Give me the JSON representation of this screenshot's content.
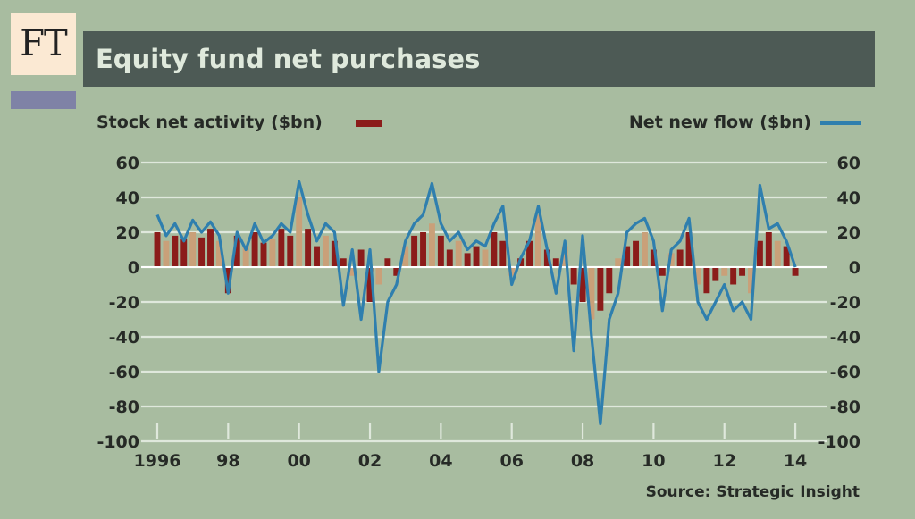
{
  "logo": {
    "text": "FT"
  },
  "header": {
    "title": "Equity fund net purchases"
  },
  "legend": {
    "left_label": "Stock net activity ($bn)",
    "right_label": "Net new flow ($bn)"
  },
  "source": "Source: Strategic Insight",
  "colors": {
    "background": "#a8bca0",
    "title_bar": "#4d5a55",
    "bars": "#8b1c1a",
    "bars_light": "#c9a079",
    "line": "#2f7fae",
    "gridline": "#dfe8dc"
  },
  "chart_data": {
    "type": "bar",
    "title": "Equity fund net purchases",
    "y_axis_left_label": "Stock net activity ($bn)",
    "y_axis_right_label": "Net new flow ($bn)",
    "ylim": [
      -100,
      60
    ],
    "yticks": [
      60,
      40,
      20,
      0,
      -20,
      -40,
      -60,
      -80,
      -100
    ],
    "xlim": [
      1996,
      2014.2
    ],
    "xticks": [
      {
        "value": 1996,
        "label": "1996"
      },
      {
        "value": 1998,
        "label": "98"
      },
      {
        "value": 2000,
        "label": "00"
      },
      {
        "value": 2002,
        "label": "02"
      },
      {
        "value": 2004,
        "label": "04"
      },
      {
        "value": 2006,
        "label": "06"
      },
      {
        "value": 2008,
        "label": "08"
      },
      {
        "value": 2010,
        "label": "10"
      },
      {
        "value": 2012,
        "label": "12"
      },
      {
        "value": 2014,
        "label": "14"
      }
    ],
    "grid": true,
    "series": [
      {
        "name": "Stock net activity ($bn)",
        "kind": "bar",
        "x": [
          1996.0,
          1996.25,
          1996.5,
          1996.75,
          1997.0,
          1997.25,
          1997.5,
          1997.75,
          1998.0,
          1998.25,
          1998.5,
          1998.75,
          1999.0,
          1999.25,
          1999.5,
          1999.75,
          2000.0,
          2000.25,
          2000.5,
          2000.75,
          2001.0,
          2001.25,
          2001.5,
          2001.75,
          2002.0,
          2002.25,
          2002.5,
          2002.75,
          2003.0,
          2003.25,
          2003.5,
          2003.75,
          2004.0,
          2004.25,
          2004.5,
          2004.75,
          2005.0,
          2005.25,
          2005.5,
          2005.75,
          2006.0,
          2006.25,
          2006.5,
          2006.75,
          2007.0,
          2007.25,
          2007.5,
          2007.75,
          2008.0,
          2008.25,
          2008.5,
          2008.75,
          2009.0,
          2009.25,
          2009.5,
          2009.75,
          2010.0,
          2010.25,
          2010.5,
          2010.75,
          2011.0,
          2011.25,
          2011.5,
          2011.75,
          2012.0,
          2012.25,
          2012.5,
          2012.75,
          2013.0,
          2013.25,
          2013.5,
          2013.75,
          2014.0
        ],
        "values": [
          20,
          15,
          18,
          16,
          20,
          17,
          22,
          15,
          -15,
          18,
          12,
          20,
          14,
          16,
          22,
          18,
          40,
          22,
          12,
          18,
          15,
          5,
          -5,
          10,
          -20,
          -10,
          5,
          -5,
          12,
          18,
          20,
          25,
          18,
          10,
          15,
          8,
          12,
          10,
          20,
          15,
          -5,
          5,
          15,
          30,
          10,
          5,
          12,
          -10,
          -20,
          -30,
          -25,
          -15,
          5,
          12,
          15,
          20,
          10,
          -5,
          8,
          10,
          20,
          -10,
          -15,
          -8,
          -5,
          -10,
          -5,
          -15,
          15,
          20,
          15,
          12,
          -5
        ]
      },
      {
        "name": "Net new flow ($bn)",
        "kind": "line",
        "x": [
          1996.0,
          1996.25,
          1996.5,
          1996.75,
          1997.0,
          1997.25,
          1997.5,
          1997.75,
          1998.0,
          1998.25,
          1998.5,
          1998.75,
          1999.0,
          1999.25,
          1999.5,
          1999.75,
          2000.0,
          2000.25,
          2000.5,
          2000.75,
          2001.0,
          2001.25,
          2001.5,
          2001.75,
          2002.0,
          2002.25,
          2002.5,
          2002.75,
          2003.0,
          2003.25,
          2003.5,
          2003.75,
          2004.0,
          2004.25,
          2004.5,
          2004.75,
          2005.0,
          2005.25,
          2005.5,
          2005.75,
          2006.0,
          2006.25,
          2006.5,
          2006.75,
          2007.0,
          2007.25,
          2007.5,
          2007.75,
          2008.0,
          2008.25,
          2008.5,
          2008.75,
          2009.0,
          2009.25,
          2009.5,
          2009.75,
          2010.0,
          2010.25,
          2010.5,
          2010.75,
          2011.0,
          2011.25,
          2011.5,
          2011.75,
          2012.0,
          2012.25,
          2012.5,
          2012.75,
          2013.0,
          2013.25,
          2013.5,
          2013.75,
          2014.0
        ],
        "values": [
          30,
          18,
          25,
          15,
          27,
          20,
          26,
          18,
          -15,
          20,
          10,
          25,
          14,
          18,
          25,
          20,
          49,
          30,
          15,
          25,
          20,
          -22,
          10,
          -30,
          10,
          -60,
          -20,
          -10,
          15,
          25,
          30,
          48,
          25,
          15,
          20,
          10,
          15,
          12,
          25,
          35,
          -10,
          5,
          15,
          35,
          10,
          -15,
          15,
          -48,
          18,
          -40,
          -90,
          -30,
          -15,
          20,
          25,
          28,
          15,
          -25,
          10,
          15,
          28,
          -20,
          -30,
          -20,
          -10,
          -25,
          -20,
          -30,
          47,
          22,
          25,
          15,
          0
        ]
      }
    ]
  }
}
